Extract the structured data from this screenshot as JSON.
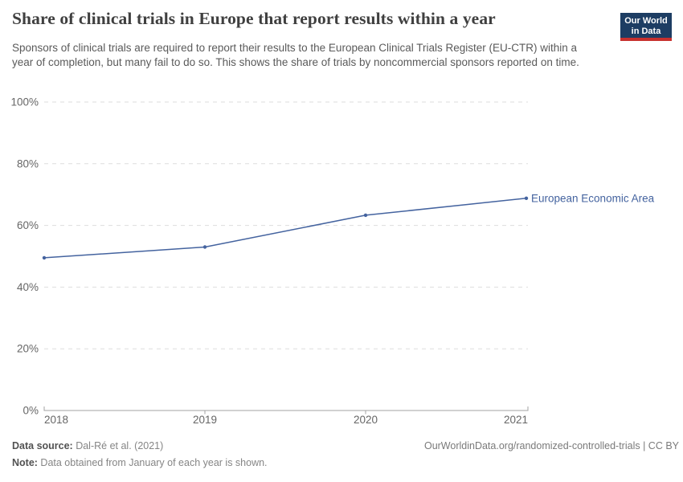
{
  "header": {
    "title": "Share of clinical trials in Europe that report results within a year",
    "subtitle": "Sponsors of clinical trials are required to report their results to the European Clinical Trials Register (EU-CTR) within a year of completion, but many fail to do so. This shows the share of trials by noncommercial sponsors reported on time.",
    "logo": {
      "line1": "Our World",
      "line2": "in Data",
      "bg_color": "#1d3d63",
      "bar_color": "#c7312e"
    }
  },
  "chart_data": {
    "type": "line",
    "title": "Share of clinical trials in Europe that report results within a year",
    "x": [
      2018,
      2019,
      2020,
      2021
    ],
    "series": [
      {
        "name": "European Economic Area",
        "values": [
          49.5,
          53,
          63.3,
          68.8
        ],
        "color": "#44639f"
      }
    ],
    "xlabel": "",
    "ylabel": "",
    "ylim": [
      0,
      100
    ],
    "yticks": [
      0,
      20,
      40,
      60,
      80,
      100
    ],
    "ytick_suffix": "%",
    "grid": "horizontal-dashed",
    "legend_position": "line-end-label",
    "colors": {
      "gridline": "#dddddd",
      "axis": "#a3a3a3",
      "tick_label": "#666666"
    }
  },
  "footer": {
    "datasource_label": "Data source:",
    "datasource_value": " Dal-Ré et al. (2021)",
    "note_label": "Note:",
    "note_value": " Data obtained from January of each year is shown.",
    "attribution": "OurWorldinData.org/randomized-controlled-trials | CC BY"
  }
}
